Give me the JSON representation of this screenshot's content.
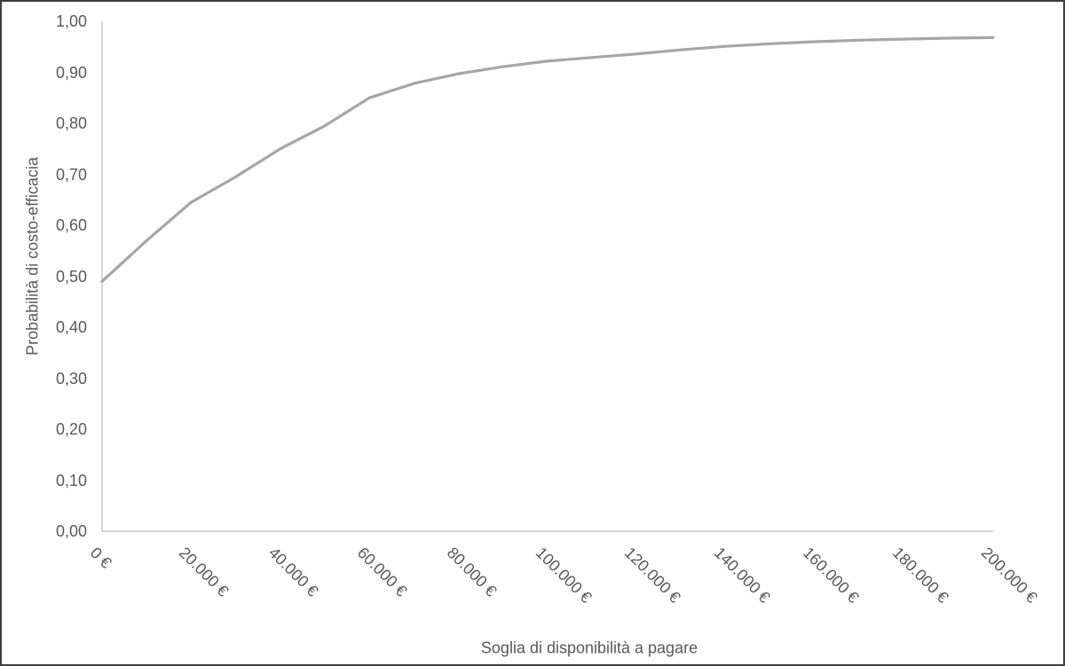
{
  "chart_data": {
    "type": "line",
    "title": "",
    "xlabel": "Soglia di disponibilità a pagare",
    "ylabel": "Probabilità di costo-efficacia",
    "x": [
      0,
      10000,
      20000,
      30000,
      40000,
      50000,
      60000,
      70000,
      80000,
      90000,
      100000,
      110000,
      120000,
      130000,
      140000,
      150000,
      160000,
      170000,
      180000,
      190000,
      200000
    ],
    "y": [
      0.49,
      0.57,
      0.645,
      0.695,
      0.75,
      0.795,
      0.85,
      0.878,
      0.897,
      0.911,
      0.922,
      0.929,
      0.936,
      0.944,
      0.951,
      0.956,
      0.96,
      0.963,
      0.965,
      0.967,
      0.968
    ],
    "x_tick_values": [
      0,
      20000,
      40000,
      60000,
      80000,
      100000,
      120000,
      140000,
      160000,
      180000,
      200000
    ],
    "x_tick_labels": [
      "0 €",
      "20.000 €",
      "40.000 €",
      "60.000 €",
      "80.000 €",
      "100.000 €",
      "120.000 €",
      "140.000 €",
      "160.000 €",
      "180.000 €",
      "200.000 €"
    ],
    "y_tick_values": [
      0.0,
      0.1,
      0.2,
      0.3,
      0.4,
      0.5,
      0.6,
      0.7,
      0.8,
      0.9,
      1.0
    ],
    "y_tick_labels": [
      "0,00",
      "0,10",
      "0,20",
      "0,30",
      "0,40",
      "0,50",
      "0,60",
      "0,70",
      "0,80",
      "0,90",
      "1,00"
    ],
    "xlim": [
      0,
      200000
    ],
    "ylim": [
      0,
      1
    ],
    "grid": "off",
    "legend": "none",
    "line_color": "#a6a6a6",
    "axis_color": "#c6c6c6",
    "text_color": "#595959",
    "background_color": "#ffffff",
    "border_color": "#3e3e3e"
  }
}
